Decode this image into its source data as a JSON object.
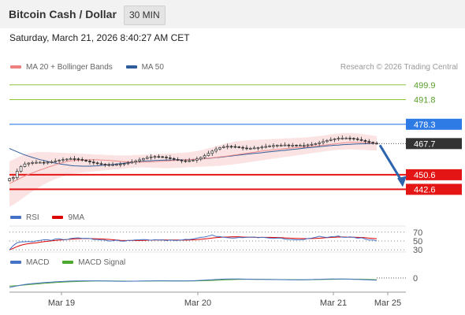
{
  "header": {
    "title": "Bitcoin Cash / Dollar",
    "timeframe": "30 MIN"
  },
  "datetime": "Saturday, March 21, 2026 8:40:27 AM CET",
  "credit": "Research © 2026 Trading Central",
  "price_legend": [
    {
      "label": "MA 20 + Bollinger Bands",
      "color": "#f08080"
    },
    {
      "label": "MA 50",
      "color": "#2f5d9b"
    }
  ],
  "rsi_legend": [
    {
      "label": "RSI",
      "color": "#4472c4"
    },
    {
      "label": "9MA",
      "color": "#dd0000"
    }
  ],
  "macd_legend": [
    {
      "label": "MACD",
      "color": "#4472c4"
    },
    {
      "label": "MACD Signal",
      "color": "#4ea72e"
    }
  ],
  "colors": {
    "resistance": "#8cc63f",
    "pivot": "#2f7be5",
    "support": "#e41515",
    "current": "#333333",
    "arrow": "#2e63ad"
  },
  "chart_data": [
    {
      "type": "candlestick",
      "x_ticks": [
        "Mar 19",
        "Mar 20",
        "Mar 21",
        "Mar 25"
      ],
      "levels": [
        {
          "label": "499.9",
          "value": 499.9,
          "kind": "resistance"
        },
        {
          "label": "491.8",
          "value": 491.8,
          "kind": "resistance"
        },
        {
          "label": "478.3",
          "value": 478.3,
          "kind": "pivot"
        },
        {
          "label": "467.7",
          "value": 467.7,
          "kind": "current"
        },
        {
          "label": "450.6",
          "value": 450.6,
          "kind": "support"
        },
        {
          "label": "442.6",
          "value": 442.6,
          "kind": "support"
        }
      ],
      "forecast": {
        "from": 467.7,
        "to": 442.6,
        "direction": "down"
      },
      "close": [
        448.5,
        449.0,
        452.5,
        455.1,
        456.5,
        457.0,
        457.3,
        457.4,
        457.4,
        457.3,
        457.5,
        457.7,
        458.1,
        458.5,
        458.9,
        459.2,
        459.4,
        459.3,
        459.0,
        458.6,
        458.1,
        457.6,
        457.1,
        456.7,
        456.4,
        456.2,
        456.1,
        456.1,
        456.2,
        456.4,
        456.7,
        457.1,
        457.6,
        458.2,
        458.8,
        459.5,
        460.1,
        460.4,
        460.6,
        460.5,
        460.3,
        459.9,
        459.5,
        459.0,
        458.6,
        458.3,
        458.2,
        458.3,
        458.6,
        459.3,
        460.1,
        461.1,
        462.3,
        463.6,
        464.7,
        465.5,
        466.0,
        466.2,
        466.1,
        465.9,
        465.6,
        465.3,
        465.1,
        465.1,
        465.3,
        465.5,
        465.8,
        466.1,
        466.4,
        466.6,
        466.8,
        466.8,
        466.9,
        466.8,
        466.8,
        466.7,
        466.7,
        466.8,
        467.0,
        467.3,
        467.7,
        468.2,
        468.8,
        469.4,
        469.9,
        470.3,
        470.6,
        470.7,
        470.7,
        470.6,
        470.3,
        469.9,
        469.4,
        468.9,
        468.4,
        467.9,
        467.7
      ],
      "ma20": [
        445.7,
        446.8,
        447.8,
        448.9,
        449.9,
        450.8,
        451.6,
        452.4,
        453.2,
        453.9,
        454.7,
        455.4,
        456.1,
        456.8,
        457.4,
        457.9,
        458.2,
        458.5,
        458.6,
        458.7,
        458.8,
        458.8,
        458.8,
        458.8,
        458.7,
        458.6,
        458.4,
        458.3,
        458.1,
        457.9,
        457.8,
        457.7,
        457.6,
        457.6,
        457.6,
        457.6,
        457.6,
        457.7,
        457.8,
        457.9,
        458.0,
        458.1,
        458.3,
        458.4,
        458.5,
        458.6,
        458.8,
        458.9,
        459.0,
        459.2,
        459.3,
        459.5,
        459.7,
        459.9,
        460.1,
        460.4,
        460.6,
        460.9,
        461.2,
        461.5,
        461.8,
        462.1,
        462.4,
        462.7,
        463.0,
        463.3,
        463.6,
        463.8,
        464.0,
        464.3,
        464.5,
        464.7,
        464.9,
        465.1,
        465.3,
        465.5,
        465.6,
        465.8,
        466.0,
        466.2,
        466.4,
        466.6,
        466.8,
        467.0,
        467.3,
        467.5,
        467.7,
        468.0,
        468.2,
        468.3,
        468.4,
        468.4,
        468.4,
        468.3,
        468.1,
        467.9,
        467.7
      ],
      "ma50": [
        465.0,
        464.1,
        463.2,
        462.3,
        461.5,
        460.8,
        460.1,
        459.5,
        458.9,
        458.4,
        457.9,
        457.4,
        457.0,
        456.6,
        456.3,
        456.0,
        455.7,
        455.5,
        455.4,
        455.3,
        455.3,
        455.3,
        455.4,
        455.5,
        455.7,
        455.9,
        456.1,
        456.3,
        456.5,
        456.7,
        457.0,
        457.2,
        457.4,
        457.6,
        457.8,
        458.0,
        458.2,
        458.3,
        458.4,
        458.5,
        458.6,
        458.7,
        458.7,
        458.7,
        458.8,
        458.8,
        458.8,
        458.9,
        459.0,
        459.1,
        459.2,
        459.4,
        459.6,
        459.8,
        460.0,
        460.2,
        460.4,
        460.7,
        460.9,
        461.2,
        461.4,
        461.6,
        461.9,
        462.1,
        462.3,
        462.5,
        462.7,
        463.0,
        463.2,
        463.4,
        463.6,
        463.8,
        464.0,
        464.3,
        464.5,
        464.7,
        464.9,
        465.2,
        465.4,
        465.6,
        465.8,
        466.0,
        466.2,
        466.4,
        466.6,
        466.8,
        466.9,
        467.1,
        467.2,
        467.3,
        467.4,
        467.5,
        467.6,
        467.6,
        467.7,
        467.7,
        467.7
      ],
      "bb_upper": [
        458.0,
        459.0,
        460.0,
        461.0,
        461.8,
        462.4,
        462.8,
        463.0,
        463.1,
        463.1,
        463.0,
        462.9,
        462.8,
        462.7,
        462.6,
        462.5,
        462.4,
        462.3,
        462.2,
        462.1,
        462.0,
        461.9,
        461.8,
        461.7,
        461.6,
        461.5,
        461.4,
        461.3,
        461.2,
        461.2,
        461.2,
        461.2,
        461.3,
        461.4,
        461.5,
        461.6,
        461.7,
        461.8,
        461.9,
        462.0,
        462.1,
        462.2,
        462.3,
        462.4,
        462.5,
        462.6,
        462.8,
        463.0,
        463.3,
        463.6,
        464.0,
        464.5,
        465.1,
        465.7,
        466.3,
        466.9,
        467.5,
        468.0,
        468.4,
        468.8,
        469.1,
        469.3,
        469.5,
        469.6,
        469.7,
        469.8,
        469.9,
        470.0,
        470.1,
        470.2,
        470.3,
        470.4,
        470.5,
        470.6,
        470.7,
        470.8,
        470.9,
        471.0,
        471.2,
        471.4,
        471.6,
        471.8,
        472.1,
        472.4,
        472.7,
        473.0,
        473.2,
        473.4,
        473.5,
        473.5,
        473.4,
        473.2,
        473.0,
        472.7,
        472.4,
        472.1,
        471.8
      ],
      "bb_lower": [
        433.0,
        434.0,
        435.5,
        437.0,
        438.5,
        440.0,
        441.4,
        442.7,
        444.0,
        445.2,
        446.3,
        447.3,
        448.2,
        449.0,
        449.7,
        450.3,
        450.8,
        451.2,
        451.5,
        451.8,
        452.0,
        452.2,
        452.4,
        452.6,
        452.8,
        453.0,
        453.2,
        453.4,
        453.6,
        453.8,
        454.0,
        454.2,
        454.4,
        454.5,
        454.6,
        454.6,
        454.6,
        454.5,
        454.4,
        454.3,
        454.2,
        454.2,
        454.2,
        454.3,
        454.4,
        454.5,
        454.6,
        454.7,
        454.8,
        454.9,
        455.0,
        455.1,
        455.2,
        455.3,
        455.4,
        455.5,
        455.7,
        455.9,
        456.1,
        456.4,
        456.7,
        457.0,
        457.3,
        457.6,
        457.9,
        458.2,
        458.5,
        458.8,
        459.1,
        459.4,
        459.7,
        460.0,
        460.3,
        460.6,
        460.9,
        461.2,
        461.5,
        461.8,
        462.1,
        462.4,
        462.7,
        463.0,
        463.3,
        463.6,
        463.9,
        464.1,
        464.3,
        464.4,
        464.5,
        464.5,
        464.5,
        464.4,
        464.3,
        464.2,
        464.1,
        464.0,
        463.9
      ]
    },
    {
      "type": "line",
      "name": "RSI",
      "y_ticks": [
        30,
        50,
        70
      ],
      "rsi": [
        30.0,
        39.6,
        46.1,
        48.0,
        48.2,
        48.5,
        48.3,
        50.0,
        51.2,
        52.7,
        52.7,
        51.4,
        54.4,
        54.9,
        53.0,
        53.1,
        55.6,
        56.6,
        57.1,
        55.8,
        56.0,
        55.8,
        53.4,
        53.4,
        52.2,
        52.0,
        49.9,
        50.6,
        51.9,
        49.9,
        49.7,
        51.3,
        51.5,
        52.5,
        52.7,
        53.3,
        52.9,
        51.5,
        52.8,
        52.2,
        52.5,
        50.9,
        52.1,
        51.2,
        51.3,
        52.4,
        53.6,
        53.4,
        54.4,
        56.4,
        58.2,
        59.0,
        61.0,
        63.5,
        60.1,
        60.0,
        58.2,
        57.5,
        56.6,
        56.7,
        58.0,
        57.6,
        58.3,
        58.8,
        59.0,
        57.4,
        58.4,
        57.5,
        56.5,
        55.7,
        56.8,
        56.4,
        54.2,
        53.4,
        53.0,
        52.7,
        52.8,
        53.4,
        55.6,
        56.4,
        58.2,
        60.7,
        58.9,
        58.1,
        59.6,
        59.9,
        61.2,
        58.4,
        58.2,
        59.2,
        58.3,
        56.3,
        57.3,
        54.5,
        52.1,
        52.3,
        50.2
      ],
      "ma9": [
        30.0,
        33.4,
        37.4,
        40.4,
        42.4,
        43.9,
        44.8,
        45.8,
        47.3,
        48.4,
        49.3,
        50.1,
        51.2,
        51.9,
        52.5,
        53.4,
        54.0,
        54.6,
        55.2,
        55.3,
        55.4,
        55.3,
        55.2,
        54.8,
        54.6,
        54.1,
        53.5,
        52.8,
        52.1,
        51.4,
        51.1,
        51.1,
        51.1,
        51.1,
        51.1,
        51.5,
        51.7,
        51.8,
        52.1,
        52.4,
        52.5,
        52.4,
        52.2,
        52.2,
        52.1,
        52.0,
        52.0,
        52.1,
        52.6,
        53.0,
        53.7,
        54.6,
        55.6,
        56.6,
        57.5,
        58.2,
        58.7,
        59.0,
        59.3,
        59.6,
        59.3,
        59.0,
        58.7,
        58.4,
        58.3,
        58.3,
        58.3,
        58.3,
        58.3,
        58.1,
        57.9,
        57.5,
        57.0,
        56.5,
        56.1,
        55.8,
        55.6,
        55.4,
        55.4,
        55.5,
        55.7,
        56.3,
        56.9,
        57.5,
        58.0,
        58.6,
        58.9,
        59.1,
        59.0,
        58.6,
        58.5,
        58.2,
        58.0,
        57.3,
        56.5,
        55.7,
        55.0
      ]
    },
    {
      "type": "line",
      "name": "MACD",
      "y_ticks": [
        0
      ],
      "macd": [
        -2.45,
        -2.25,
        -2.05,
        -1.85,
        -1.7,
        -1.55,
        -1.45,
        -1.36,
        -1.28,
        -1.2,
        -1.13,
        -1.06,
        -1.0,
        -0.94,
        -0.89,
        -0.84,
        -0.8,
        -0.77,
        -0.75,
        -0.74,
        -0.73,
        -0.73,
        -0.73,
        -0.74,
        -0.75,
        -0.77,
        -0.79,
        -0.81,
        -0.83,
        -0.84,
        -0.85,
        -0.84,
        -0.83,
        -0.82,
        -0.8,
        -0.78,
        -0.76,
        -0.75,
        -0.74,
        -0.74,
        -0.74,
        -0.74,
        -0.75,
        -0.76,
        -0.77,
        -0.77,
        -0.76,
        -0.74,
        -0.71,
        -0.67,
        -0.62,
        -0.56,
        -0.5,
        -0.44,
        -0.38,
        -0.33,
        -0.29,
        -0.27,
        -0.26,
        -0.26,
        -0.27,
        -0.29,
        -0.31,
        -0.33,
        -0.35,
        -0.36,
        -0.37,
        -0.38,
        -0.39,
        -0.4,
        -0.41,
        -0.42,
        -0.43,
        -0.44,
        -0.45,
        -0.45,
        -0.45,
        -0.44,
        -0.42,
        -0.4,
        -0.37,
        -0.34,
        -0.31,
        -0.29,
        -0.27,
        -0.26,
        -0.26,
        -0.27,
        -0.29,
        -0.31,
        -0.34,
        -0.37,
        -0.41,
        -0.45,
        -0.49,
        -0.53,
        -0.56
      ],
      "signal": [
        -2.1,
        -2.05,
        -1.98,
        -1.9,
        -1.81,
        -1.72,
        -1.63,
        -1.55,
        -1.47,
        -1.39,
        -1.32,
        -1.25,
        -1.19,
        -1.13,
        -1.07,
        -1.02,
        -0.97,
        -0.93,
        -0.89,
        -0.86,
        -0.83,
        -0.81,
        -0.79,
        -0.78,
        -0.77,
        -0.77,
        -0.77,
        -0.78,
        -0.79,
        -0.8,
        -0.81,
        -0.82,
        -0.82,
        -0.82,
        -0.82,
        -0.81,
        -0.8,
        -0.79,
        -0.78,
        -0.77,
        -0.76,
        -0.76,
        -0.76,
        -0.76,
        -0.76,
        -0.76,
        -0.76,
        -0.76,
        -0.75,
        -0.74,
        -0.72,
        -0.7,
        -0.67,
        -0.63,
        -0.59,
        -0.55,
        -0.5,
        -0.46,
        -0.42,
        -0.39,
        -0.36,
        -0.34,
        -0.33,
        -0.33,
        -0.33,
        -0.34,
        -0.35,
        -0.36,
        -0.37,
        -0.38,
        -0.39,
        -0.4,
        -0.41,
        -0.42,
        -0.43,
        -0.44,
        -0.44,
        -0.44,
        -0.44,
        -0.43,
        -0.42,
        -0.4,
        -0.38,
        -0.36,
        -0.34,
        -0.32,
        -0.3,
        -0.29,
        -0.29,
        -0.29,
        -0.3,
        -0.31,
        -0.33,
        -0.35,
        -0.38,
        -0.41,
        -0.44
      ]
    }
  ]
}
